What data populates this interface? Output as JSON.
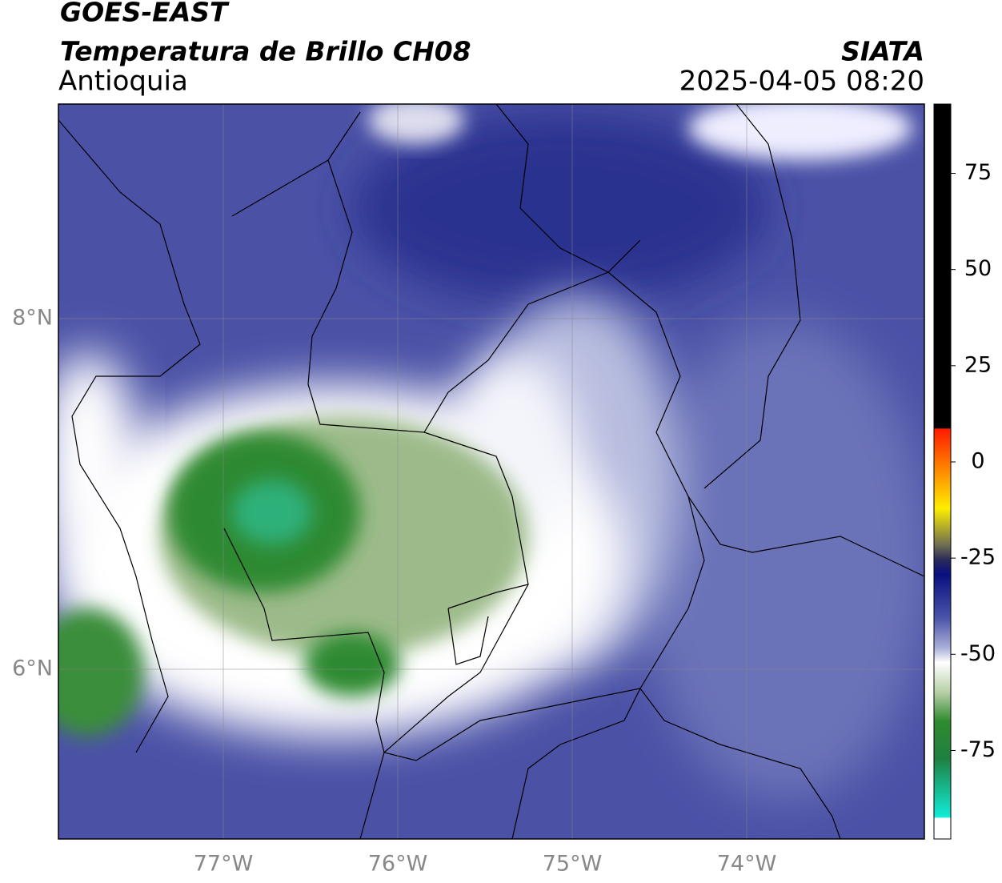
{
  "header": {
    "title": "GOES-EAST",
    "subtitle": "Temperatura de Brillo CH08",
    "region": "Antioquia",
    "agency": "SIATA",
    "datetime": "2025-04-05 08:20"
  },
  "map": {
    "lat_labels": [
      "8°N",
      "6°N"
    ],
    "lon_labels": [
      "77°W",
      "76°W",
      "75°W",
      "74°W"
    ]
  },
  "colorbar": {
    "range": [
      -98,
      93
    ],
    "ticks": [
      75,
      50,
      25,
      0,
      -25,
      -50,
      -75
    ]
  }
}
